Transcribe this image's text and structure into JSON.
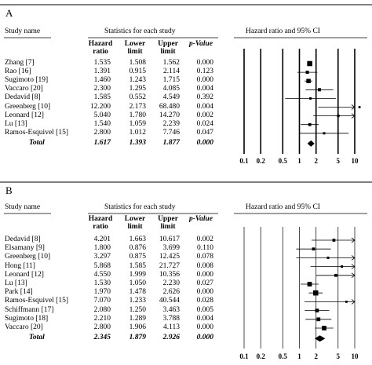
{
  "chart_data": [
    {
      "type": "forest",
      "panel_label": "A",
      "columns": {
        "study": "Study name",
        "stats_header": "Statistics for each study",
        "hr": "Hazard ratio",
        "lower": "Lower limit",
        "upper": "Upper limit",
        "p": "p-Value",
        "plot": "Hazard ratio and 95% CI"
      },
      "studies": [
        {
          "name": "Zhang [7]",
          "hr": "1.535",
          "lower": "1.508",
          "upper": "1.562",
          "p": "0.000",
          "weight": 0.9
        },
        {
          "name": "Rao [16]",
          "hr": "1.391",
          "lower": "0.915",
          "upper": "2.114",
          "p": "0.123",
          "weight": 0.4
        },
        {
          "name": "Sugimoto [19]",
          "hr": "1.460",
          "lower": "1.243",
          "upper": "1.715",
          "p": "0.000",
          "weight": 0.7
        },
        {
          "name": "Vaccaro [20]",
          "hr": "2.300",
          "lower": "1.295",
          "upper": "4.085",
          "p": "0.004",
          "weight": 0.4
        },
        {
          "name": "Dedavid [8]",
          "hr": "1.585",
          "lower": "0.552",
          "upper": "4.549",
          "p": "0.392",
          "weight": 0.2
        },
        {
          "name": "Greenberg [10]",
          "hr": "12.200",
          "lower": "2.173",
          "upper": "68.480",
          "p": "0.004",
          "weight": 0.15
        },
        {
          "name": "Leonard [12]",
          "hr": "5.040",
          "lower": "1.780",
          "upper": "14.270",
          "p": "0.002",
          "weight": 0.25
        },
        {
          "name": "Lu [13]",
          "hr": "1.540",
          "lower": "1.059",
          "upper": "2.239",
          "p": "0.024",
          "weight": 0.35
        },
        {
          "name": "Ramos-Esquivel [15]",
          "hr": "2.800",
          "lower": "1.012",
          "upper": "7.746",
          "p": "0.047",
          "weight": 0.2
        }
      ],
      "total": {
        "name": "Total",
        "hr": "1.617",
        "lower": "1.393",
        "upper": "1.877",
        "p": "0.000"
      },
      "x_ticks": [
        "0.1",
        "0.2",
        "0.5",
        "1",
        "2",
        "5",
        "10"
      ],
      "xlim": [
        0.1,
        10
      ],
      "log_scale": true
    },
    {
      "type": "forest",
      "panel_label": "B",
      "columns": {
        "study": "Study name",
        "stats_header": "Statistics for each study",
        "hr": "Hazard ratio",
        "lower": "Lower limit",
        "upper": "Upper limit",
        "p": "p-Value",
        "plot": "Hazard ratio and 95% CI"
      },
      "studies": [
        {
          "name": "Dedavid [8]",
          "hr": "4.201",
          "lower": "1.663",
          "upper": "10.617",
          "p": "0.002",
          "weight": 0.35
        },
        {
          "name": "Elsamany [9]",
          "hr": "1.800",
          "lower": "0.876",
          "upper": "3.699",
          "p": "0.110",
          "weight": 0.35
        },
        {
          "name": "Greenberg [10]",
          "hr": "3.297",
          "lower": "0.875",
          "upper": "12.425",
          "p": "0.078",
          "weight": 0.2
        },
        {
          "name": "Hong [11]",
          "hr": "5.868",
          "lower": "1.585",
          "upper": "21.727",
          "p": "0.008",
          "weight": 0.2
        },
        {
          "name": "Leonard [12]",
          "hr": "4.550",
          "lower": "1.999",
          "upper": "10.356",
          "p": "0.000",
          "weight": 0.35
        },
        {
          "name": "Lu [13]",
          "hr": "1.530",
          "lower": "1.050",
          "upper": "2.230",
          "p": "0.027",
          "weight": 0.75
        },
        {
          "name": "Park [14]",
          "hr": "1.970",
          "lower": "1.478",
          "upper": "2.626",
          "p": "0.000",
          "weight": 0.9
        },
        {
          "name": "Ramos-Esquivel [15]",
          "hr": "7.070",
          "lower": "1.233",
          "upper": "40.544",
          "p": "0.028",
          "weight": 0.15
        },
        {
          "name": "Schiffmann [17]",
          "hr": "2.080",
          "lower": "1.250",
          "upper": "3.463",
          "p": "0.005",
          "weight": 0.55
        },
        {
          "name": "Sugimoto [18]",
          "hr": "2.210",
          "lower": "1.289",
          "upper": "3.788",
          "p": "0.004",
          "weight": 0.55
        },
        {
          "name": "Vaccaro [20]",
          "hr": "2.800",
          "lower": "1.906",
          "upper": "4.113",
          "p": "0.000",
          "weight": 0.75
        }
      ],
      "total": {
        "name": "Total",
        "hr": "2.345",
        "lower": "1.879",
        "upper": "2.926",
        "p": "0.000"
      },
      "x_ticks": [
        "0.1",
        "0.2",
        "0.5",
        "1",
        "2",
        "5",
        "10"
      ],
      "xlim": [
        0.1,
        10
      ],
      "log_scale": true
    }
  ]
}
